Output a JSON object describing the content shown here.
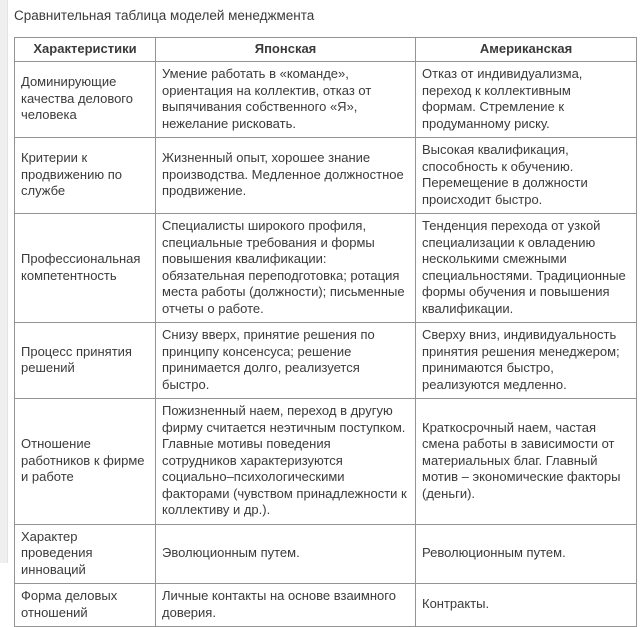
{
  "page": {
    "title": "Сравнительная таблица моделей менеджмента"
  },
  "colors": {
    "background": "#ffffff",
    "edge_strip": "#efefef",
    "table_border": "#949494",
    "text": "#3b3b3b"
  },
  "table": {
    "headers": [
      "Характеристики",
      "Японская",
      "Американская"
    ],
    "rows": [
      {
        "characteristic": "Доминирующие качества делового человека",
        "japanese": "Умение работать в «команде», ориентация на коллектив, отказ от выпячивания собственного «Я», нежелание рисковать.",
        "american": "Отказ от индивидуализма, переход к коллективным формам. Стремление к продуманному риску."
      },
      {
        "characteristic": "Критерии к продвижению по службе",
        "japanese": "Жизненный опыт, хорошее знание производства. Медленное должностное продвижение.",
        "american": "Высокая квалификация, способность к обучению. Перемещение в должности происходит быстро."
      },
      {
        "characteristic": "Профессиональная компетентность",
        "japanese": "Специалисты широкого профиля, специальные требования и формы повышения квалификации: обязательная переподготовка; ротация места работы (должности); письменные отчеты о работе.",
        "american": "Тенденция перехода от узкой специализации к овладению несколькими смежными специальностями. Традиционные формы обучения и повышения квалификации."
      },
      {
        "characteristic": "Процесс принятия решений",
        "japanese": "Снизу вверх, принятие решения по принципу консенсуса; решение принимается долго, реализуется быстро.",
        "american": "Сверху вниз, индивидуальность принятия решения менеджером; принимаются быстро, реализуются медленно."
      },
      {
        "characteristic": "Отношение работников к фирме и работе",
        "japanese": "Пожизненный наем, переход в другую фирму считается неэтичным поступком. Главные мотивы поведения сотрудников характеризуются социально–психологическими факторами (чувством принадлежности к коллективу и др.).",
        "american": "Краткосрочный наем, частая смена работы в зависимости от материальных благ. Главный мотив – экономические факторы (деньги)."
      },
      {
        "characteristic": "Характер проведения инноваций",
        "japanese": "Эволюционным путем.",
        "american": "Революционным путем."
      },
      {
        "characteristic": "Форма деловых отношений",
        "japanese": "Личные контакты на основе взаимного доверия.",
        "american": "Контракты."
      }
    ]
  }
}
